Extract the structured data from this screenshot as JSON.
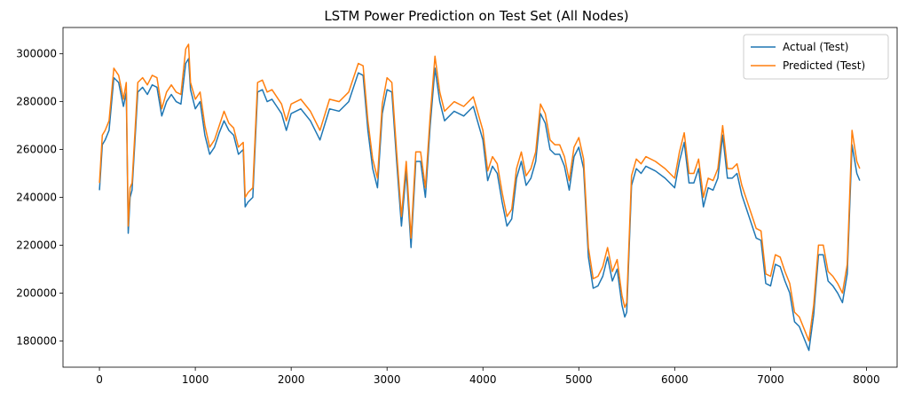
{
  "chart_data": {
    "type": "line",
    "title": "LSTM Power Prediction on Test Set (All Nodes)",
    "xlabel": "",
    "ylabel": "",
    "xlim": [
      -380,
      8320
    ],
    "ylim": [
      169000,
      311000
    ],
    "x_ticks": [
      0,
      1000,
      2000,
      3000,
      4000,
      5000,
      6000,
      7000,
      8000
    ],
    "y_ticks": [
      180000,
      200000,
      220000,
      240000,
      260000,
      280000,
      300000
    ],
    "grid": false,
    "legend_position": "top-right",
    "series": [
      {
        "name": "Actual (Test)",
        "color": "#1f77b4",
        "x": [
          0,
          30,
          60,
          100,
          150,
          200,
          250,
          280,
          300,
          320,
          340,
          400,
          450,
          500,
          550,
          600,
          650,
          700,
          750,
          800,
          850,
          900,
          930,
          950,
          1000,
          1050,
          1100,
          1150,
          1200,
          1250,
          1300,
          1350,
          1400,
          1450,
          1500,
          1520,
          1550,
          1600,
          1650,
          1700,
          1750,
          1800,
          1850,
          1900,
          1950,
          2000,
          2100,
          2200,
          2300,
          2400,
          2500,
          2600,
          2700,
          2750,
          2800,
          2850,
          2900,
          2950,
          3000,
          3050,
          3100,
          3150,
          3200,
          3250,
          3300,
          3350,
          3400,
          3450,
          3500,
          3550,
          3600,
          3700,
          3800,
          3900,
          4000,
          4050,
          4100,
          4150,
          4200,
          4250,
          4300,
          4350,
          4400,
          4450,
          4500,
          4550,
          4600,
          4650,
          4700,
          4750,
          4800,
          4850,
          4900,
          4950,
          5000,
          5050,
          5100,
          5150,
          5200,
          5250,
          5300,
          5350,
          5400,
          5450,
          5480,
          5500,
          5550,
          5600,
          5650,
          5700,
          5800,
          5900,
          6000,
          6050,
          6100,
          6150,
          6200,
          6250,
          6300,
          6350,
          6400,
          6450,
          6500,
          6550,
          6600,
          6650,
          6700,
          6750,
          6800,
          6850,
          6900,
          6950,
          7000,
          7050,
          7100,
          7150,
          7200,
          7250,
          7300,
          7350,
          7400,
          7450,
          7500,
          7550,
          7600,
          7650,
          7700,
          7750,
          7800,
          7850,
          7900,
          7930
        ],
        "values": [
          243000,
          262000,
          264000,
          268000,
          290000,
          288000,
          278000,
          284000,
          225000,
          240000,
          243000,
          284000,
          286000,
          283000,
          287000,
          286000,
          274000,
          280000,
          283000,
          280000,
          279000,
          296000,
          298000,
          285000,
          277000,
          280000,
          266000,
          258000,
          261000,
          267000,
          272000,
          268000,
          266000,
          258000,
          260000,
          236000,
          238000,
          240000,
          284000,
          285000,
          280000,
          281000,
          278000,
          275000,
          268000,
          275000,
          277000,
          272000,
          264000,
          277000,
          276000,
          280000,
          292000,
          291000,
          268000,
          252000,
          244000,
          275000,
          285000,
          284000,
          255000,
          228000,
          251000,
          219000,
          255000,
          255000,
          240000,
          270000,
          294000,
          280000,
          272000,
          276000,
          274000,
          278000,
          264000,
          247000,
          253000,
          250000,
          238000,
          228000,
          231000,
          248000,
          255000,
          245000,
          248000,
          255000,
          275000,
          271000,
          260000,
          258000,
          258000,
          253000,
          243000,
          257000,
          261000,
          252000,
          215000,
          202000,
          203000,
          207000,
          215000,
          205000,
          210000,
          195000,
          190000,
          192000,
          245000,
          252000,
          250000,
          253000,
          251000,
          248000,
          244000,
          255000,
          263000,
          246000,
          246000,
          252000,
          236000,
          244000,
          243000,
          248000,
          266000,
          248000,
          248000,
          250000,
          241000,
          235000,
          229000,
          223000,
          222000,
          204000,
          203000,
          212000,
          211000,
          205000,
          200000,
          188000,
          186000,
          181000,
          176000,
          191000,
          216000,
          216000,
          205000,
          203000,
          200000,
          196000,
          208000,
          262000,
          250000,
          247000
        ]
      },
      {
        "name": "Predicted (Test)",
        "color": "#ff7f0e",
        "x": [
          0,
          30,
          60,
          100,
          150,
          200,
          250,
          280,
          300,
          320,
          340,
          400,
          450,
          500,
          550,
          600,
          650,
          700,
          750,
          800,
          850,
          900,
          930,
          950,
          1000,
          1050,
          1100,
          1150,
          1200,
          1250,
          1300,
          1350,
          1400,
          1450,
          1500,
          1520,
          1550,
          1600,
          1650,
          1700,
          1750,
          1800,
          1850,
          1900,
          1950,
          2000,
          2100,
          2200,
          2300,
          2400,
          2500,
          2600,
          2700,
          2750,
          2800,
          2850,
          2900,
          2950,
          3000,
          3050,
          3100,
          3150,
          3200,
          3250,
          3300,
          3350,
          3400,
          3450,
          3500,
          3550,
          3600,
          3700,
          3800,
          3900,
          4000,
          4050,
          4100,
          4150,
          4200,
          4250,
          4300,
          4350,
          4400,
          4450,
          4500,
          4550,
          4600,
          4650,
          4700,
          4750,
          4800,
          4850,
          4900,
          4950,
          5000,
          5050,
          5100,
          5150,
          5200,
          5250,
          5300,
          5350,
          5400,
          5450,
          5480,
          5500,
          5550,
          5600,
          5650,
          5700,
          5800,
          5900,
          6000,
          6050,
          6100,
          6150,
          6200,
          6250,
          6300,
          6350,
          6400,
          6450,
          6500,
          6550,
          6600,
          6650,
          6700,
          6750,
          6800,
          6850,
          6900,
          6950,
          7000,
          7050,
          7100,
          7150,
          7200,
          7250,
          7300,
          7350,
          7400,
          7450,
          7500,
          7550,
          7600,
          7650,
          7700,
          7750,
          7800,
          7850,
          7900,
          7930
        ],
        "values": [
          246000,
          266000,
          268000,
          272000,
          294000,
          291000,
          281000,
          288000,
          228000,
          244000,
          246000,
          288000,
          290000,
          287000,
          291000,
          290000,
          277000,
          284000,
          287000,
          284000,
          283000,
          302000,
          304000,
          288000,
          281000,
          284000,
          270000,
          261000,
          264000,
          270000,
          276000,
          271000,
          269000,
          261000,
          263000,
          240000,
          242000,
          244000,
          288000,
          289000,
          284000,
          285000,
          282000,
          279000,
          272000,
          279000,
          281000,
          276000,
          268000,
          281000,
          280000,
          284000,
          296000,
          295000,
          272000,
          256000,
          248000,
          279000,
          290000,
          288000,
          259000,
          232000,
          255000,
          223000,
          259000,
          259000,
          244000,
          274000,
          299000,
          284000,
          276000,
          280000,
          278000,
          282000,
          268000,
          251000,
          257000,
          254000,
          242000,
          232000,
          235000,
          252000,
          259000,
          249000,
          252000,
          259000,
          279000,
          275000,
          264000,
          262000,
          262000,
          257000,
          247000,
          261000,
          265000,
          256000,
          219000,
          206000,
          207000,
          211000,
          219000,
          209000,
          214000,
          199000,
          194000,
          196000,
          249000,
          256000,
          254000,
          257000,
          255000,
          252000,
          248000,
          259000,
          267000,
          250000,
          250000,
          256000,
          240000,
          248000,
          247000,
          252000,
          270000,
          252000,
          252000,
          254000,
          245000,
          239000,
          233000,
          227000,
          226000,
          208000,
          207000,
          216000,
          215000,
          209000,
          204000,
          192000,
          190000,
          185000,
          180000,
          195000,
          220000,
          220000,
          209000,
          207000,
          204000,
          200000,
          212000,
          268000,
          255000,
          252000
        ]
      }
    ]
  }
}
